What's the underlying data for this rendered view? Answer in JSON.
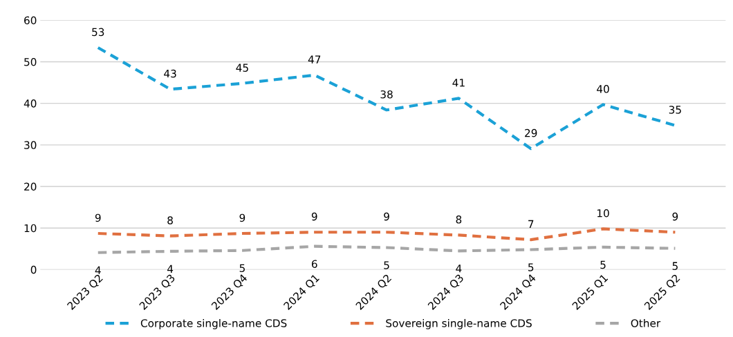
{
  "chart_data": {
    "type": "line",
    "categories": [
      "2023 Q2",
      "2023 Q3",
      "2023 Q4",
      "2024 Q1",
      "2024 Q2",
      "2024 Q3",
      "2024 Q4",
      "2025 Q1",
      "2025 Q2"
    ],
    "series": [
      {
        "name": "Corporate single-name CDS",
        "color": "#1ba1d6",
        "values": [
          53.4,
          43.4,
          44.8,
          46.8,
          38.4,
          41.2,
          29.1,
          39.7,
          34.7
        ],
        "value_labels": [
          "53",
          "43",
          "45",
          "47",
          "38",
          "41",
          "29",
          "40",
          "35"
        ]
      },
      {
        "name": "Sovereign single-name CDS",
        "color": "#e07040",
        "values": [
          8.7,
          8.1,
          8.7,
          9.0,
          9.0,
          8.3,
          7.2,
          9.8,
          9.0
        ],
        "value_labels": [
          "9",
          "8",
          "9",
          "9",
          "9",
          "8",
          "7",
          "10",
          "9"
        ]
      },
      {
        "name": "Other",
        "color": "#a6a6a6",
        "values": [
          4.1,
          4.4,
          4.6,
          5.6,
          5.3,
          4.5,
          4.8,
          5.4,
          5.1
        ],
        "value_labels": [
          "4",
          "4",
          "5",
          "6",
          "5",
          "4",
          "5",
          "5",
          "5"
        ]
      }
    ],
    "ylim": [
      0,
      60
    ],
    "yticks": [
      0,
      10,
      20,
      30,
      40,
      50,
      60
    ],
    "grid": "y",
    "legend": "bottom",
    "line_style": "dashed",
    "marker": "none"
  }
}
